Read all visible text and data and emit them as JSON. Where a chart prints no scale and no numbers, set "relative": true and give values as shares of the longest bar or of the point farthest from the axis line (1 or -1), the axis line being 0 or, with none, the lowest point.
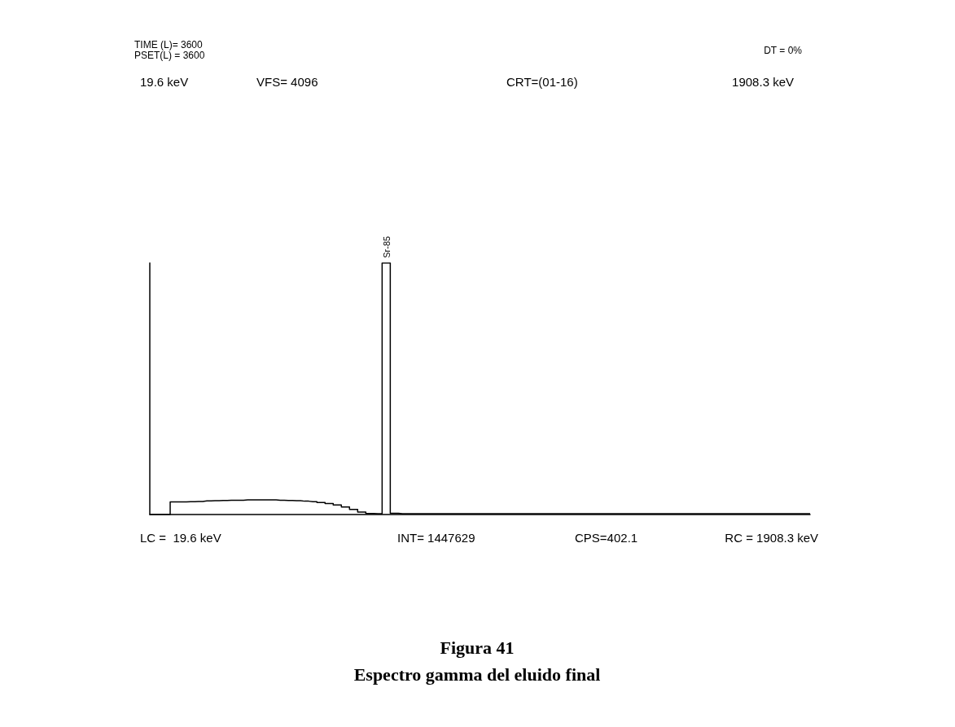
{
  "chart_data": {
    "type": "step",
    "relative": true,
    "title": "Figura 41",
    "subtitle": "Espectro gamma del eluido final",
    "annotations": [
      "Sr-85",
      "TIME (L)= 3600",
      "PSET(L) = 3600",
      "DT = 0%",
      "19.6 keV",
      "VFS= 4096",
      "CRT=(01-16)",
      "1908.3 keV",
      "LC =  19.6 keV",
      "INT= 1447629",
      "CPS=402.1",
      "RC = 1908.3 keV"
    ],
    "categories": [
      null,
      null,
      null,
      null,
      null,
      null,
      null,
      null,
      null,
      null,
      null,
      null,
      null,
      null,
      null,
      null,
      null,
      null,
      null,
      null,
      null,
      null,
      null,
      null,
      null,
      null,
      null,
      null,
      null,
      null,
      null,
      null,
      null,
      null,
      null,
      null,
      null,
      null,
      null,
      null,
      null,
      null,
      null,
      null,
      null,
      null,
      null,
      null,
      null,
      null,
      null,
      null,
      null,
      null,
      null,
      null,
      null,
      null,
      null,
      null,
      null,
      null,
      null,
      null,
      null,
      null,
      null,
      null,
      null,
      null,
      null,
      null,
      null,
      null,
      null,
      null,
      null,
      null,
      null,
      null,
      null,
      null
    ],
    "values": [
      0,
      0,
      0,
      0.05,
      0.05,
      0.051,
      0.052,
      0.054,
      0.055,
      0.056,
      0.057,
      0.057,
      0.058,
      0.058,
      0.058,
      0.058,
      0.057,
      0.056,
      0.055,
      0.053,
      0.051,
      0.048,
      0.044,
      0.038,
      0.03,
      0.02,
      0.01,
      0.004,
      0.003,
      1,
      0.005,
      0.003,
      0.003,
      0.003,
      0.003,
      0.003,
      0.003,
      0.003,
      0.003,
      0.003,
      0.003,
      0.003,
      0.003,
      0.003,
      0.003,
      0.003,
      0.003,
      0.003,
      0.003,
      0.003,
      0.003,
      0.003,
      0.003,
      0.003,
      0.003,
      0.003,
      0.003,
      0.003,
      0.003,
      0.003,
      0.003,
      0.003,
      0.003,
      0.003,
      0.003,
      0.003,
      0.003,
      0.003,
      0.003,
      0.003,
      0.003,
      0.003,
      0.003,
      0.003,
      0.003,
      0.003,
      0.003,
      0.003,
      0.003,
      0.003,
      0.003,
      0.003
    ],
    "color": "#000000",
    "marker": "none",
    "line_style": "solid",
    "grid": false
  }
}
